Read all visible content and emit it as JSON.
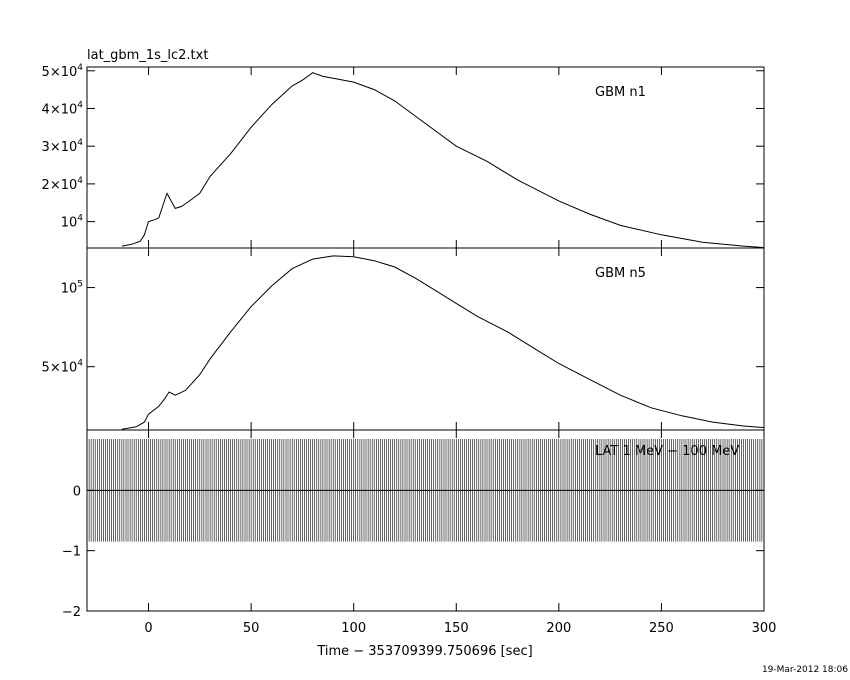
{
  "title": "lat_gbm_1s_lc2.txt",
  "xlabel": "Time − 353709399.750696 [sec]",
  "timestamp": "19-Mar-2012 18:06",
  "chart_data": [
    {
      "type": "line",
      "label": "GBM n1",
      "xlim": [
        -30,
        300
      ],
      "ylim": [
        3000,
        51000
      ],
      "yticks": [
        {
          "v": 10000,
          "t": "10",
          "e": "4"
        },
        {
          "v": 20000,
          "t": "2×10",
          "e": "4"
        },
        {
          "v": 30000,
          "t": "3×10",
          "e": "4"
        },
        {
          "v": 40000,
          "t": "4×10",
          "e": "4"
        },
        {
          "v": 50000,
          "t": "5×10",
          "e": "4"
        }
      ],
      "points": [
        [
          -13,
          3500
        ],
        [
          -8,
          4000
        ],
        [
          -4,
          4800
        ],
        [
          -2,
          6500
        ],
        [
          0,
          10000
        ],
        [
          3,
          10500
        ],
        [
          5,
          11000
        ],
        [
          8,
          16000
        ],
        [
          9,
          17500
        ],
        [
          11,
          15500
        ],
        [
          13,
          13500
        ],
        [
          16,
          14000
        ],
        [
          20,
          15500
        ],
        [
          25,
          17500
        ],
        [
          30,
          22000
        ],
        [
          40,
          28000
        ],
        [
          50,
          35000
        ],
        [
          60,
          41000
        ],
        [
          70,
          46000
        ],
        [
          75,
          47500
        ],
        [
          80,
          49500
        ],
        [
          85,
          48500
        ],
        [
          90,
          48000
        ],
        [
          100,
          47000
        ],
        [
          110,
          45000
        ],
        [
          120,
          42000
        ],
        [
          130,
          38000
        ],
        [
          140,
          34000
        ],
        [
          150,
          30000
        ],
        [
          165,
          26000
        ],
        [
          180,
          21000
        ],
        [
          200,
          15500
        ],
        [
          215,
          12000
        ],
        [
          230,
          9000
        ],
        [
          250,
          6500
        ],
        [
          270,
          4500
        ],
        [
          290,
          3500
        ],
        [
          300,
          3100
        ]
      ]
    },
    {
      "type": "line",
      "label": "GBM n5",
      "xlim": [
        -30,
        300
      ],
      "ylim": [
        10000,
        125000
      ],
      "yticks": [
        {
          "v": 50000,
          "t": "5×10",
          "e": "4"
        },
        {
          "v": 100000,
          "t": "10",
          "e": "5"
        }
      ],
      "points": [
        [
          -13,
          10500
        ],
        [
          -6,
          12000
        ],
        [
          -2,
          15000
        ],
        [
          0,
          20000
        ],
        [
          5,
          25000
        ],
        [
          8,
          30000
        ],
        [
          10,
          34000
        ],
        [
          13,
          32000
        ],
        [
          18,
          35000
        ],
        [
          25,
          45000
        ],
        [
          30,
          55000
        ],
        [
          40,
          72000
        ],
        [
          50,
          88000
        ],
        [
          60,
          101000
        ],
        [
          70,
          112000
        ],
        [
          80,
          118000
        ],
        [
          90,
          120000
        ],
        [
          100,
          119500
        ],
        [
          110,
          117000
        ],
        [
          120,
          113000
        ],
        [
          130,
          106000
        ],
        [
          140,
          98000
        ],
        [
          150,
          90000
        ],
        [
          160,
          82000
        ],
        [
          175,
          72000
        ],
        [
          190,
          60000
        ],
        [
          200,
          52000
        ],
        [
          215,
          42000
        ],
        [
          230,
          32000
        ],
        [
          245,
          24000
        ],
        [
          260,
          19000
        ],
        [
          275,
          15000
        ],
        [
          290,
          12500
        ],
        [
          300,
          11500
        ]
      ]
    },
    {
      "type": "bar",
      "label": "LAT 1 MeV − 100 MeV",
      "xlim": [
        -30,
        300
      ],
      "ylim": [
        -2,
        1
      ],
      "yticks": [
        {
          "v": 0,
          "t": "0"
        },
        {
          "v": -1,
          "t": "−1"
        },
        {
          "v": -2,
          "t": "−2"
        }
      ],
      "bar_range": [
        -0.85,
        0.85
      ],
      "bar_x_range": [
        -30,
        300
      ],
      "bar_spacing": 1
    }
  ],
  "xticks": [
    0,
    50,
    100,
    150,
    200,
    250,
    300
  ]
}
